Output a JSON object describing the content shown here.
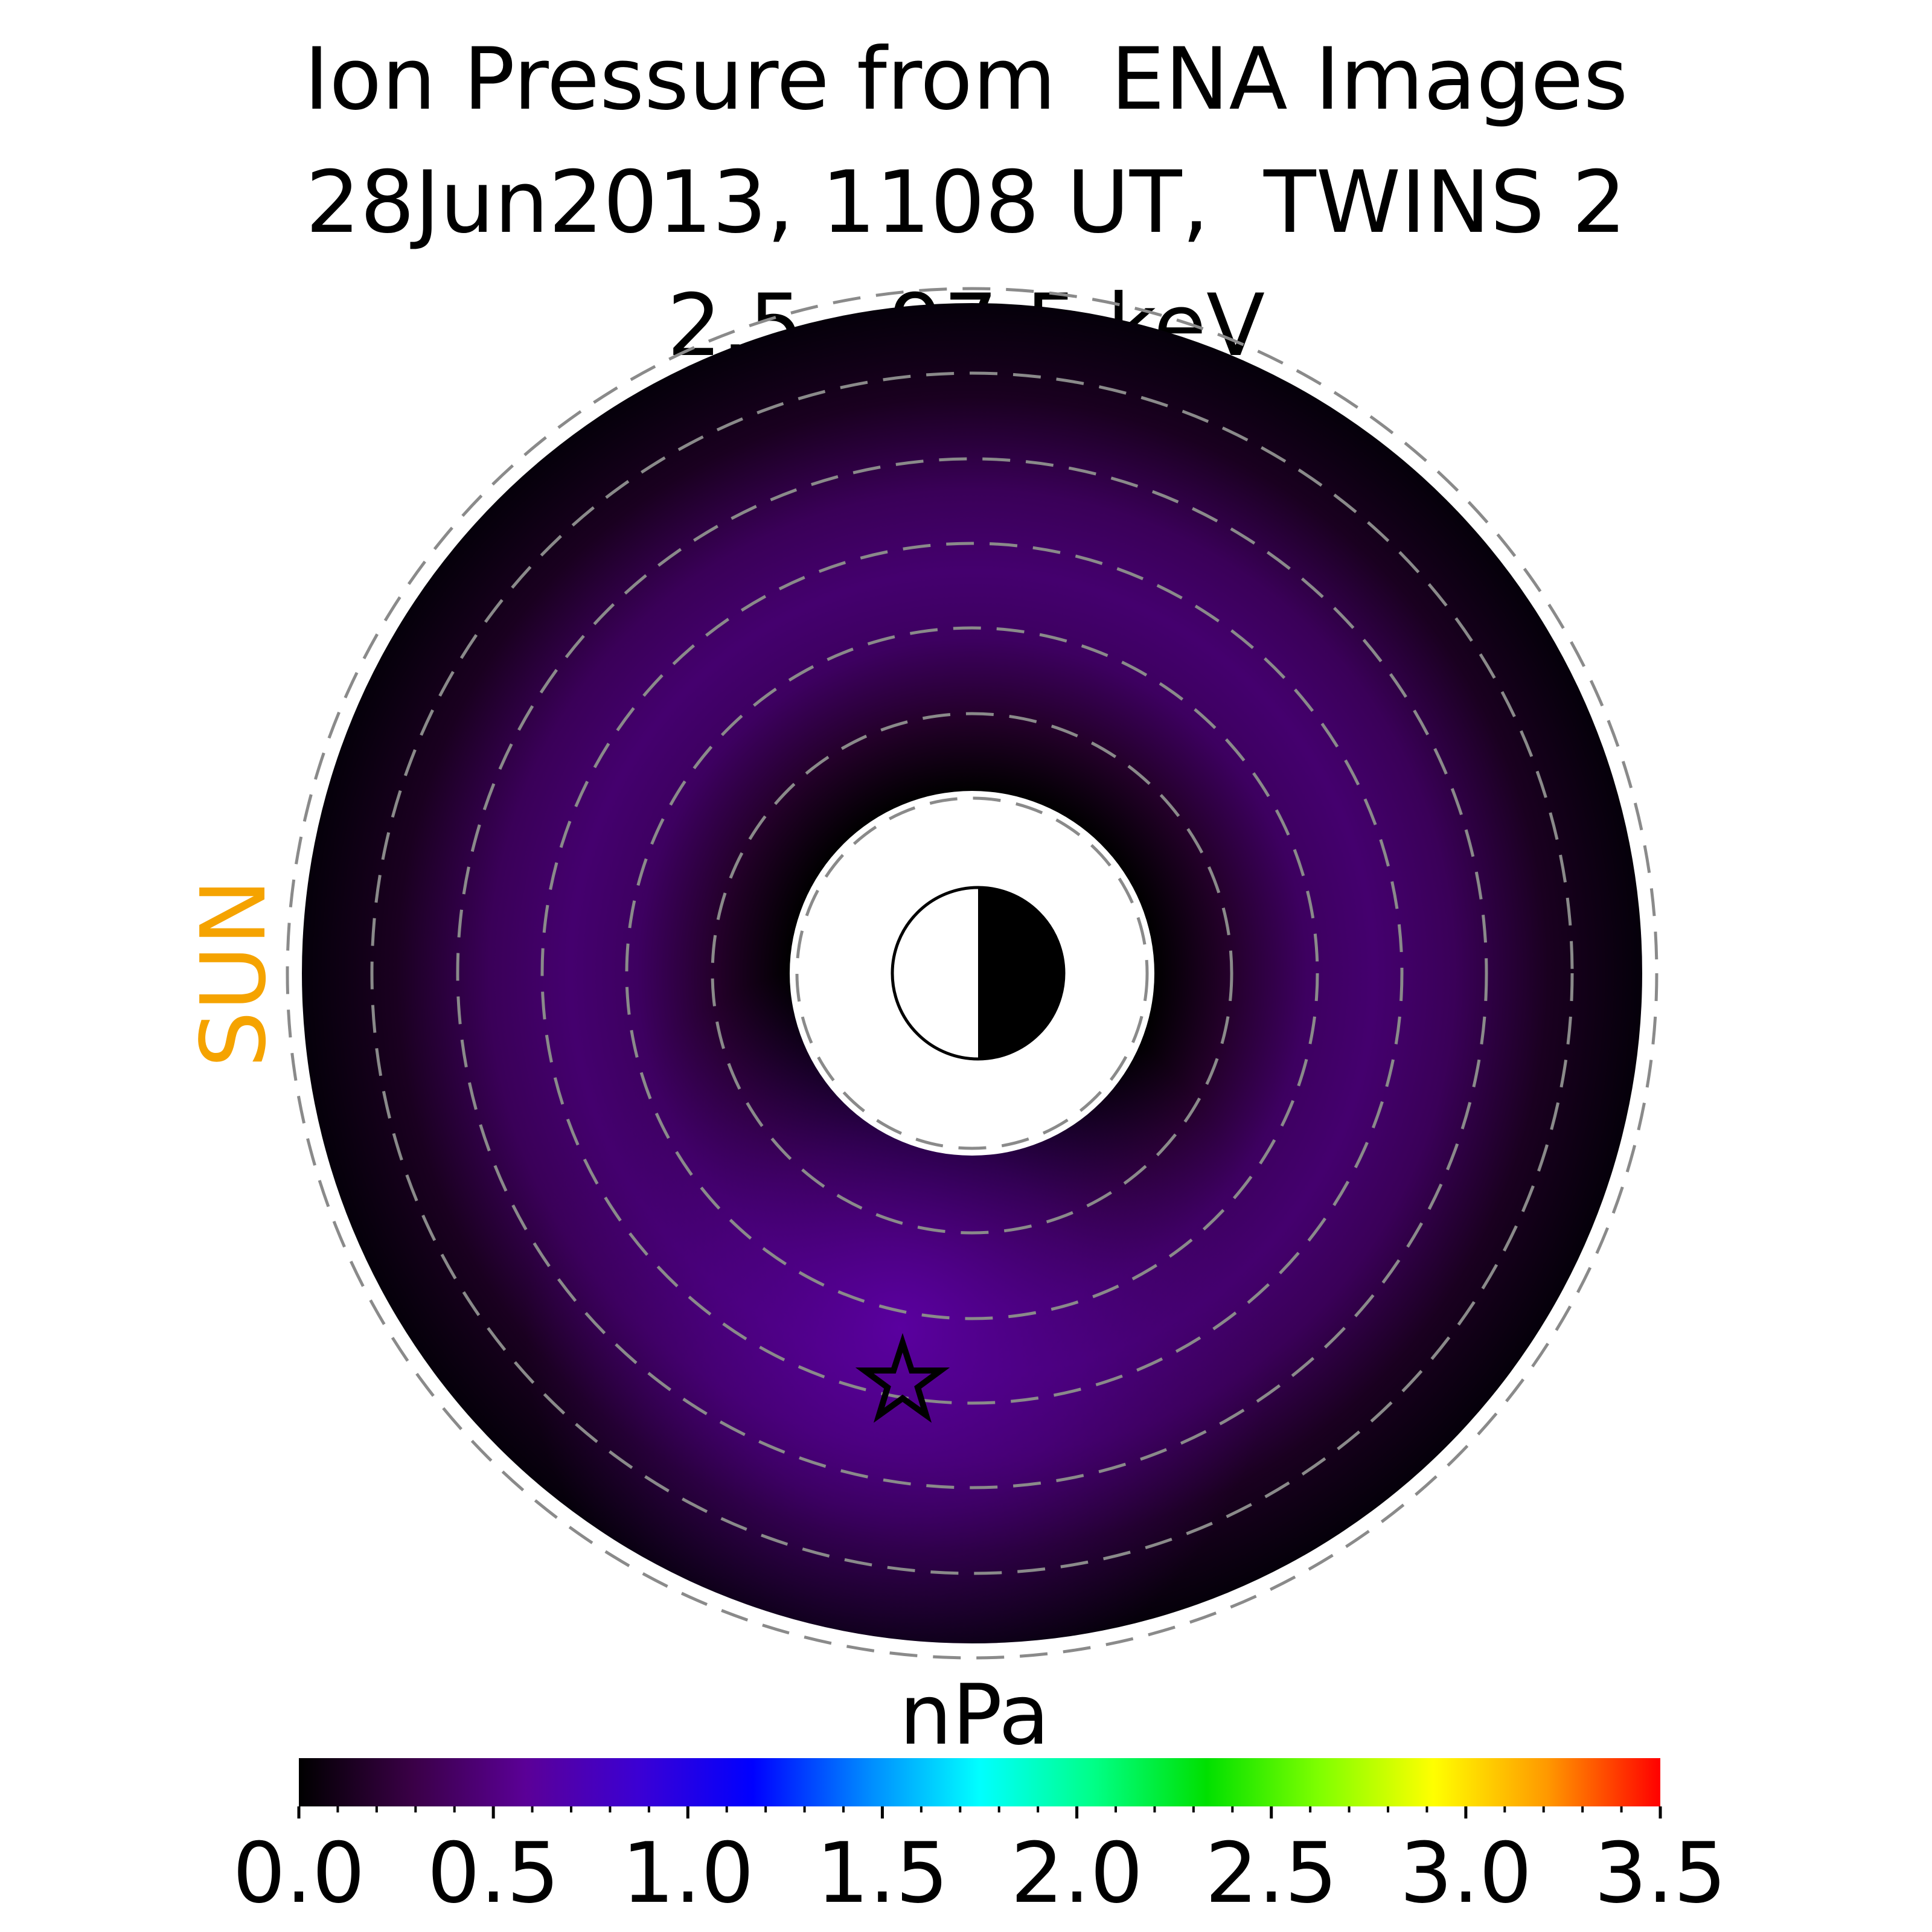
{
  "title_lines": [
    "Ion Pressure from  ENA Images",
    "28Jun2013, 1108 UT,  TWINS 2",
    "2.5 - 97.5 keV"
  ],
  "sun_label": "SUN",
  "sun_color": "#f5a300",
  "colorbar": {
    "label": "nPa",
    "min": 0.0,
    "max": 3.5,
    "ticks": [
      "0.0",
      "0.5",
      "1.0",
      "1.5",
      "2.0",
      "2.5",
      "3.0",
      "3.5"
    ],
    "colormap_stops": [
      "#000000",
      "#3a0046",
      "#5b0097",
      "#3b00d4",
      "#0000ff",
      "#0088ff",
      "#00ffff",
      "#00ff88",
      "#00e000",
      "#80ff00",
      "#ffff00",
      "#ff9900",
      "#ff0000"
    ]
  },
  "chart_data": {
    "type": "heatmap",
    "title": "Ion Pressure from  ENA Images\n28Jun2013, 1108 UT,  TWINS 2\n2.5 - 97.5 keV",
    "colorbar_label": "nPa",
    "value_range": [
      0.0,
      3.5
    ],
    "grid": true,
    "peak_pressure_nPa": 0.45,
    "peak_marker": "star",
    "sun_direction": "left",
    "earth_symbol": "half-lit circle, day side toward SUN"
  }
}
